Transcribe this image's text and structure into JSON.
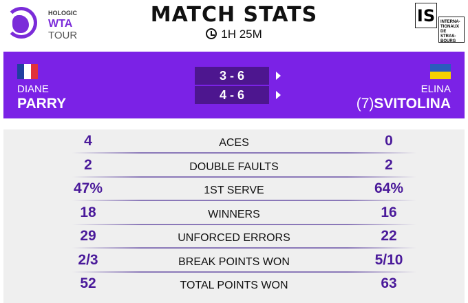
{
  "header": {
    "title": "MATCH STATS",
    "duration": "1H 25M",
    "logo_left": [
      "HOLOGIC",
      "WTA",
      "TOUR"
    ],
    "logo_right": "IS",
    "logo_right_text": "INTERNA-TIONAUX DE STRAS-BOURG"
  },
  "players": {
    "left": {
      "first": "DIANE",
      "last": "PARRY",
      "flag": "France"
    },
    "right": {
      "first": "ELINA",
      "last": "SVITOLINA",
      "seed": "(7)",
      "flag": "Ukraine"
    }
  },
  "sets": [
    "3 - 6",
    "4 - 6"
  ],
  "stats": [
    {
      "label": "ACES",
      "left": "4",
      "right": "0"
    },
    {
      "label": "DOUBLE FAULTS",
      "left": "2",
      "right": "2"
    },
    {
      "label": "1ST SERVE",
      "left": "47%",
      "right": "64%"
    },
    {
      "label": "WINNERS",
      "left": "18",
      "right": "16"
    },
    {
      "label": "UNFORCED ERRORS",
      "left": "29",
      "right": "22"
    },
    {
      "label": "BREAK POINTS WON",
      "left": "2/3",
      "right": "5/10"
    },
    {
      "label": "TOTAL POINTS WON",
      "left": "52",
      "right": "63"
    }
  ],
  "colors": {
    "accent": "#7b22e6",
    "value": "#4a1a9a"
  }
}
